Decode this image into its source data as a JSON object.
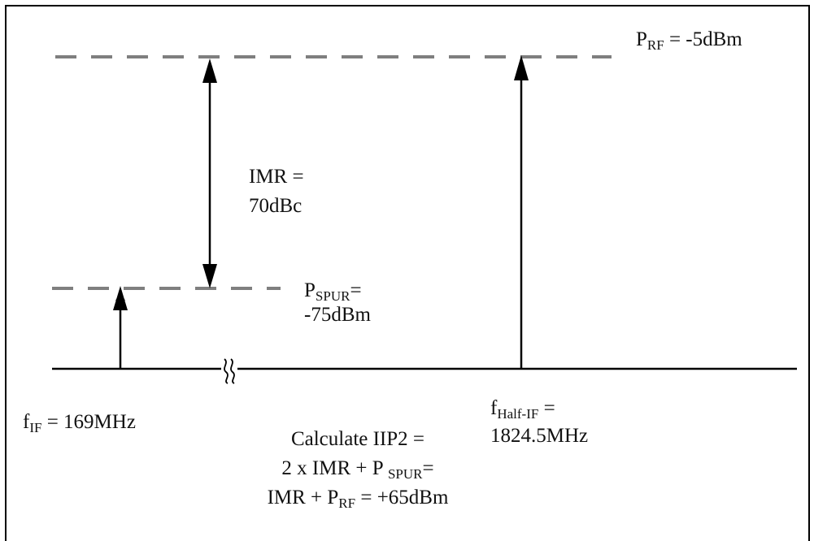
{
  "labels": {
    "p_rf": {
      "main": "P",
      "sub": "RF",
      "rest": " = -5dBm"
    },
    "imr_line1": "IMR =",
    "imr_line2": "70dBc",
    "p_spur": {
      "main": "P",
      "sub": "SPUR",
      "rest": "=",
      "line2": "-75dBm"
    },
    "f_if": {
      "main": "f",
      "sub": "IF",
      "rest": " = 169MHz"
    },
    "f_half_if": {
      "main": "f",
      "sub": "Half-IF",
      "rest": " =",
      "line2": "1824.5MHz"
    },
    "calc": {
      "line1": "Calculate IIP2 =",
      "line2_pre": "2 x IMR + P ",
      "line2_sub": "SPUR",
      "line2_post": "=",
      "line3_pre": "IMR + P",
      "line3_sub": "RF",
      "line3_post": " = +65dBm"
    },
    "axis_break": "≈"
  },
  "colors": {
    "axis": "#000000",
    "dashed": "#7f7f7f",
    "arrow": "#000000"
  }
}
